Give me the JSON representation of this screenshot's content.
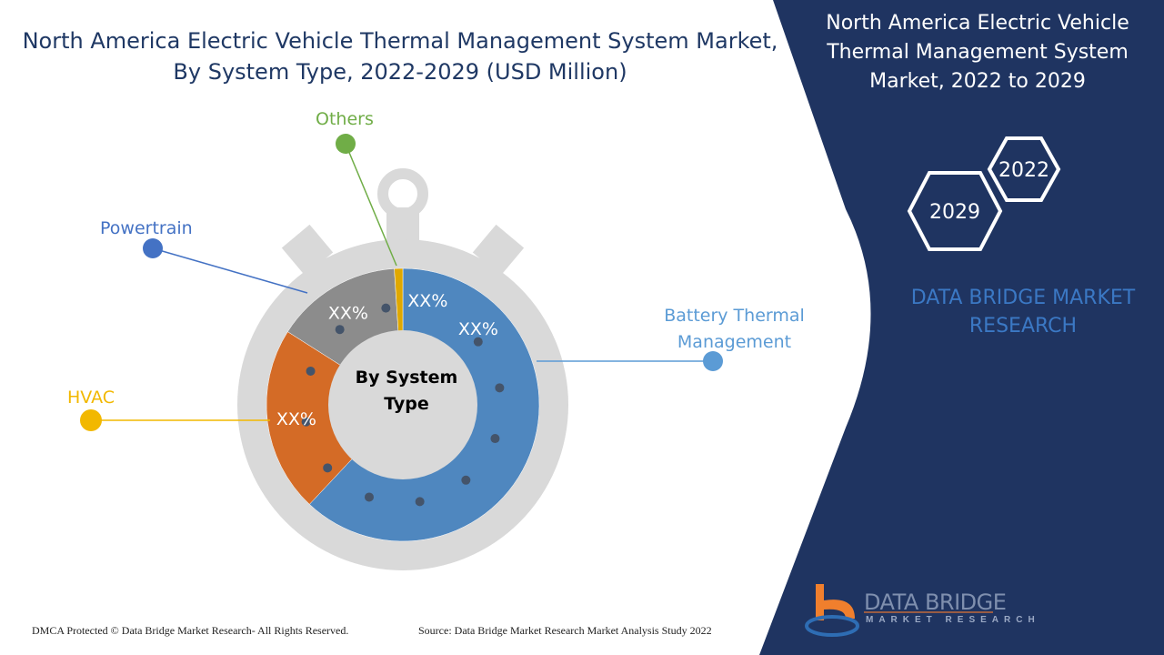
{
  "title": "North America Electric Vehicle Thermal Management System Market, By System Type, 2022-2029 (USD Million)",
  "right_panel": {
    "title": "North America Electric Vehicle Thermal Management System Market, 2022 to 2029",
    "year_start": "2022",
    "year_end": "2029",
    "brand": "DATA BRIDGE MARKET RESEARCH"
  },
  "logo": {
    "name": "DATA BRIDGE",
    "sub": "MARKET RESEARCH"
  },
  "footer": {
    "copyright": "DMCA Protected © Data Bridge Market Research- All Rights Reserved.",
    "source": "Source: Data Bridge Market Research Market Analysis Study 2022"
  },
  "chart_data": {
    "type": "pie",
    "variant": "donut",
    "center_label": "By System Type",
    "value_labels_note": "values printed as placeholders",
    "slices": [
      {
        "name": "Battery Thermal Management",
        "label": "XX%",
        "share_estimate": 62,
        "color": "#4f87bf"
      },
      {
        "name": "HVAC",
        "label": "XX%",
        "share_estimate": 22,
        "color": "#d46b26",
        "legend_color": "#f2b800"
      },
      {
        "name": "Powertrain",
        "label": "XX%",
        "share_estimate": 15,
        "color": "#8c8c8c",
        "legend_color": "#4472c4"
      },
      {
        "name": "Others",
        "label": "XX%",
        "share_estimate": 1,
        "color": "#e0a800",
        "legend_color": "#70ad47"
      }
    ]
  },
  "colors": {
    "navy": "#1f3461",
    "title": "#1f3864"
  }
}
